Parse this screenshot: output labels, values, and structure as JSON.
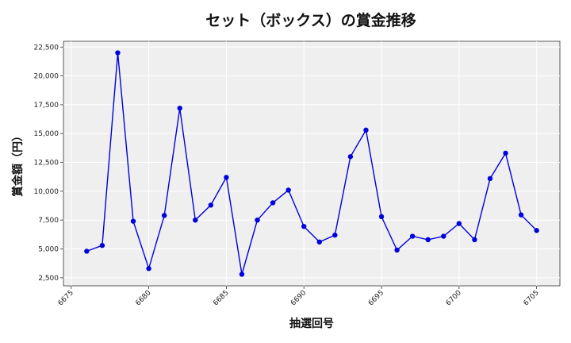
{
  "chart_data": {
    "type": "line",
    "title": "セット（ボックス）の賞金推移",
    "xlabel": "抽選回号",
    "ylabel": "賞金額（円）",
    "x": [
      6676,
      6677,
      6678,
      6679,
      6680,
      6681,
      6682,
      6683,
      6684,
      6685,
      6686,
      6687,
      6688,
      6689,
      6690,
      6691,
      6692,
      6693,
      6694,
      6695,
      6696,
      6697,
      6698,
      6699,
      6700,
      6701,
      6702,
      6703,
      6704,
      6705
    ],
    "series": [
      {
        "values": [
          4800,
          5300,
          22000,
          7400,
          3300,
          7900,
          17200,
          7500,
          8800,
          11200,
          2800,
          7500,
          9000,
          10100,
          6950,
          5600,
          6200,
          13000,
          15300,
          7800,
          4900,
          6100,
          5800,
          6100,
          7200,
          5800,
          11100,
          13300,
          7950,
          6600
        ],
        "color": "#0000dd"
      }
    ],
    "xlim": [
      6674.5,
      6706.5
    ],
    "ylim": [
      1800,
      23000
    ],
    "xticks": [
      6675,
      6680,
      6685,
      6690,
      6695,
      6700,
      6705
    ],
    "yticks": [
      2500,
      5000,
      7500,
      10000,
      12500,
      15000,
      17500,
      20000,
      22500
    ],
    "ytick_labels": [
      "2,500",
      "5,000",
      "7,500",
      "10,000",
      "12,500",
      "15,000",
      "17,500",
      "20,000",
      "22,500"
    ],
    "grid": true,
    "background": "#efefef"
  }
}
